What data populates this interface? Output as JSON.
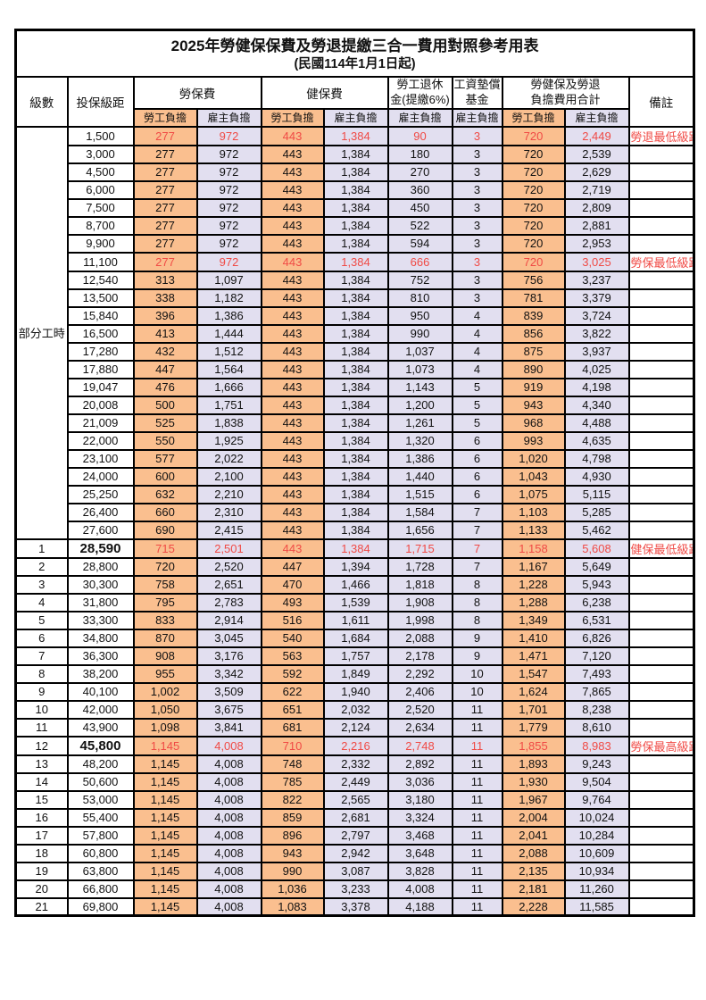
{
  "title": "2025年勞健保保費及勞退提繳三合一費用對照參考用表",
  "subtitle": "(民國114年1月1日起)",
  "columns": {
    "level": "級數",
    "bracket": "投保級距",
    "labor_insurance": "勞保費",
    "health_insurance": "健保費",
    "pension_line1": "勞工退休",
    "pension_line2": "金(提繳6%)",
    "wage_fund_line1": "工資墊償",
    "wage_fund_line2": "基金",
    "total_line1": "勞健保及勞退",
    "total_line2": "負擔費用合計",
    "remark": "備註",
    "employee_burden": "勞工負擔",
    "employer_burden": "雇主負擔"
  },
  "part_time_group_label": "部分工時",
  "part_time_row_count": 23,
  "colors": {
    "employee_fill": "#FABF8F",
    "employer_fill": "#E2DFF0",
    "highlight_red": "#F04A45",
    "border": "#000000"
  },
  "rows": [
    {
      "level": "",
      "bracket": "1,500",
      "v": [
        "277",
        "972",
        "443",
        "1,384",
        "90",
        "3",
        "720",
        "2,449"
      ],
      "remark": "勞退最低級距",
      "red": true,
      "bold": false
    },
    {
      "level": "",
      "bracket": "3,000",
      "v": [
        "277",
        "972",
        "443",
        "1,384",
        "180",
        "3",
        "720",
        "2,539"
      ],
      "remark": "",
      "red": false,
      "bold": false
    },
    {
      "level": "",
      "bracket": "4,500",
      "v": [
        "277",
        "972",
        "443",
        "1,384",
        "270",
        "3",
        "720",
        "2,629"
      ],
      "remark": "",
      "red": false,
      "bold": false
    },
    {
      "level": "",
      "bracket": "6,000",
      "v": [
        "277",
        "972",
        "443",
        "1,384",
        "360",
        "3",
        "720",
        "2,719"
      ],
      "remark": "",
      "red": false,
      "bold": false
    },
    {
      "level": "",
      "bracket": "7,500",
      "v": [
        "277",
        "972",
        "443",
        "1,384",
        "450",
        "3",
        "720",
        "2,809"
      ],
      "remark": "",
      "red": false,
      "bold": false
    },
    {
      "level": "",
      "bracket": "8,700",
      "v": [
        "277",
        "972",
        "443",
        "1,384",
        "522",
        "3",
        "720",
        "2,881"
      ],
      "remark": "",
      "red": false,
      "bold": false
    },
    {
      "level": "",
      "bracket": "9,900",
      "v": [
        "277",
        "972",
        "443",
        "1,384",
        "594",
        "3",
        "720",
        "2,953"
      ],
      "remark": "",
      "red": false,
      "bold": false
    },
    {
      "level": "",
      "bracket": "11,100",
      "v": [
        "277",
        "972",
        "443",
        "1,384",
        "666",
        "3",
        "720",
        "3,025"
      ],
      "remark": "勞保最低級距",
      "red": true,
      "bold": false
    },
    {
      "level": "",
      "bracket": "12,540",
      "v": [
        "313",
        "1,097",
        "443",
        "1,384",
        "752",
        "3",
        "756",
        "3,237"
      ],
      "remark": "",
      "red": false,
      "bold": false
    },
    {
      "level": "",
      "bracket": "13,500",
      "v": [
        "338",
        "1,182",
        "443",
        "1,384",
        "810",
        "3",
        "781",
        "3,379"
      ],
      "remark": "",
      "red": false,
      "bold": false
    },
    {
      "level": "",
      "bracket": "15,840",
      "v": [
        "396",
        "1,386",
        "443",
        "1,384",
        "950",
        "4",
        "839",
        "3,724"
      ],
      "remark": "",
      "red": false,
      "bold": false
    },
    {
      "level": "",
      "bracket": "16,500",
      "v": [
        "413",
        "1,444",
        "443",
        "1,384",
        "990",
        "4",
        "856",
        "3,822"
      ],
      "remark": "",
      "red": false,
      "bold": false
    },
    {
      "level": "",
      "bracket": "17,280",
      "v": [
        "432",
        "1,512",
        "443",
        "1,384",
        "1,037",
        "4",
        "875",
        "3,937"
      ],
      "remark": "",
      "red": false,
      "bold": false
    },
    {
      "level": "",
      "bracket": "17,880",
      "v": [
        "447",
        "1,564",
        "443",
        "1,384",
        "1,073",
        "4",
        "890",
        "4,025"
      ],
      "remark": "",
      "red": false,
      "bold": false
    },
    {
      "level": "",
      "bracket": "19,047",
      "v": [
        "476",
        "1,666",
        "443",
        "1,384",
        "1,143",
        "5",
        "919",
        "4,198"
      ],
      "remark": "",
      "red": false,
      "bold": false
    },
    {
      "level": "",
      "bracket": "20,008",
      "v": [
        "500",
        "1,751",
        "443",
        "1,384",
        "1,200",
        "5",
        "943",
        "4,340"
      ],
      "remark": "",
      "red": false,
      "bold": false
    },
    {
      "level": "",
      "bracket": "21,009",
      "v": [
        "525",
        "1,838",
        "443",
        "1,384",
        "1,261",
        "5",
        "968",
        "4,488"
      ],
      "remark": "",
      "red": false,
      "bold": false
    },
    {
      "level": "",
      "bracket": "22,000",
      "v": [
        "550",
        "1,925",
        "443",
        "1,384",
        "1,320",
        "6",
        "993",
        "4,635"
      ],
      "remark": "",
      "red": false,
      "bold": false
    },
    {
      "level": "",
      "bracket": "23,100",
      "v": [
        "577",
        "2,022",
        "443",
        "1,384",
        "1,386",
        "6",
        "1,020",
        "4,798"
      ],
      "remark": "",
      "red": false,
      "bold": false
    },
    {
      "level": "",
      "bracket": "24,000",
      "v": [
        "600",
        "2,100",
        "443",
        "1,384",
        "1,440",
        "6",
        "1,043",
        "4,930"
      ],
      "remark": "",
      "red": false,
      "bold": false
    },
    {
      "level": "",
      "bracket": "25,250",
      "v": [
        "632",
        "2,210",
        "443",
        "1,384",
        "1,515",
        "6",
        "1,075",
        "5,115"
      ],
      "remark": "",
      "red": false,
      "bold": false
    },
    {
      "level": "",
      "bracket": "26,400",
      "v": [
        "660",
        "2,310",
        "443",
        "1,384",
        "1,584",
        "7",
        "1,103",
        "5,285"
      ],
      "remark": "",
      "red": false,
      "bold": false
    },
    {
      "level": "",
      "bracket": "27,600",
      "v": [
        "690",
        "2,415",
        "443",
        "1,384",
        "1,656",
        "7",
        "1,133",
        "5,462"
      ],
      "remark": "",
      "red": false,
      "bold": false
    },
    {
      "level": "1",
      "bracket": "28,590",
      "v": [
        "715",
        "2,501",
        "443",
        "1,384",
        "1,715",
        "7",
        "1,158",
        "5,608"
      ],
      "remark": "健保最低級距",
      "red": true,
      "bold": true
    },
    {
      "level": "2",
      "bracket": "28,800",
      "v": [
        "720",
        "2,520",
        "447",
        "1,394",
        "1,728",
        "7",
        "1,167",
        "5,649"
      ],
      "remark": "",
      "red": false,
      "bold": false
    },
    {
      "level": "3",
      "bracket": "30,300",
      "v": [
        "758",
        "2,651",
        "470",
        "1,466",
        "1,818",
        "8",
        "1,228",
        "5,943"
      ],
      "remark": "",
      "red": false,
      "bold": false
    },
    {
      "level": "4",
      "bracket": "31,800",
      "v": [
        "795",
        "2,783",
        "493",
        "1,539",
        "1,908",
        "8",
        "1,288",
        "6,238"
      ],
      "remark": "",
      "red": false,
      "bold": false
    },
    {
      "level": "5",
      "bracket": "33,300",
      "v": [
        "833",
        "2,914",
        "516",
        "1,611",
        "1,998",
        "8",
        "1,349",
        "6,531"
      ],
      "remark": "",
      "red": false,
      "bold": false
    },
    {
      "level": "6",
      "bracket": "34,800",
      "v": [
        "870",
        "3,045",
        "540",
        "1,684",
        "2,088",
        "9",
        "1,410",
        "6,826"
      ],
      "remark": "",
      "red": false,
      "bold": false
    },
    {
      "level": "7",
      "bracket": "36,300",
      "v": [
        "908",
        "3,176",
        "563",
        "1,757",
        "2,178",
        "9",
        "1,471",
        "7,120"
      ],
      "remark": "",
      "red": false,
      "bold": false
    },
    {
      "level": "8",
      "bracket": "38,200",
      "v": [
        "955",
        "3,342",
        "592",
        "1,849",
        "2,292",
        "10",
        "1,547",
        "7,493"
      ],
      "remark": "",
      "red": false,
      "bold": false
    },
    {
      "level": "9",
      "bracket": "40,100",
      "v": [
        "1,002",
        "3,509",
        "622",
        "1,940",
        "2,406",
        "10",
        "1,624",
        "7,865"
      ],
      "remark": "",
      "red": false,
      "bold": false
    },
    {
      "level": "10",
      "bracket": "42,000",
      "v": [
        "1,050",
        "3,675",
        "651",
        "2,032",
        "2,520",
        "11",
        "1,701",
        "8,238"
      ],
      "remark": "",
      "red": false,
      "bold": false
    },
    {
      "level": "11",
      "bracket": "43,900",
      "v": [
        "1,098",
        "3,841",
        "681",
        "2,124",
        "2,634",
        "11",
        "1,779",
        "8,610"
      ],
      "remark": "",
      "red": false,
      "bold": false
    },
    {
      "level": "12",
      "bracket": "45,800",
      "v": [
        "1,145",
        "4,008",
        "710",
        "2,216",
        "2,748",
        "11",
        "1,855",
        "8,983"
      ],
      "remark": "勞保最高級距",
      "red": true,
      "bold": true
    },
    {
      "level": "13",
      "bracket": "48,200",
      "v": [
        "1,145",
        "4,008",
        "748",
        "2,332",
        "2,892",
        "11",
        "1,893",
        "9,243"
      ],
      "remark": "",
      "red": false,
      "bold": false
    },
    {
      "level": "14",
      "bracket": "50,600",
      "v": [
        "1,145",
        "4,008",
        "785",
        "2,449",
        "3,036",
        "11",
        "1,930",
        "9,504"
      ],
      "remark": "",
      "red": false,
      "bold": false
    },
    {
      "level": "15",
      "bracket": "53,000",
      "v": [
        "1,145",
        "4,008",
        "822",
        "2,565",
        "3,180",
        "11",
        "1,967",
        "9,764"
      ],
      "remark": "",
      "red": false,
      "bold": false
    },
    {
      "level": "16",
      "bracket": "55,400",
      "v": [
        "1,145",
        "4,008",
        "859",
        "2,681",
        "3,324",
        "11",
        "2,004",
        "10,024"
      ],
      "remark": "",
      "red": false,
      "bold": false
    },
    {
      "level": "17",
      "bracket": "57,800",
      "v": [
        "1,145",
        "4,008",
        "896",
        "2,797",
        "3,468",
        "11",
        "2,041",
        "10,284"
      ],
      "remark": "",
      "red": false,
      "bold": false
    },
    {
      "level": "18",
      "bracket": "60,800",
      "v": [
        "1,145",
        "4,008",
        "943",
        "2,942",
        "3,648",
        "11",
        "2,088",
        "10,609"
      ],
      "remark": "",
      "red": false,
      "bold": false
    },
    {
      "level": "19",
      "bracket": "63,800",
      "v": [
        "1,145",
        "4,008",
        "990",
        "3,087",
        "3,828",
        "11",
        "2,135",
        "10,934"
      ],
      "remark": "",
      "red": false,
      "bold": false
    },
    {
      "level": "20",
      "bracket": "66,800",
      "v": [
        "1,145",
        "4,008",
        "1,036",
        "3,233",
        "4,008",
        "11",
        "2,181",
        "11,260"
      ],
      "remark": "",
      "red": false,
      "bold": false
    },
    {
      "level": "21",
      "bracket": "69,800",
      "v": [
        "1,145",
        "4,008",
        "1,083",
        "3,378",
        "4,188",
        "11",
        "2,228",
        "11,585"
      ],
      "remark": "",
      "red": false,
      "bold": false
    }
  ]
}
